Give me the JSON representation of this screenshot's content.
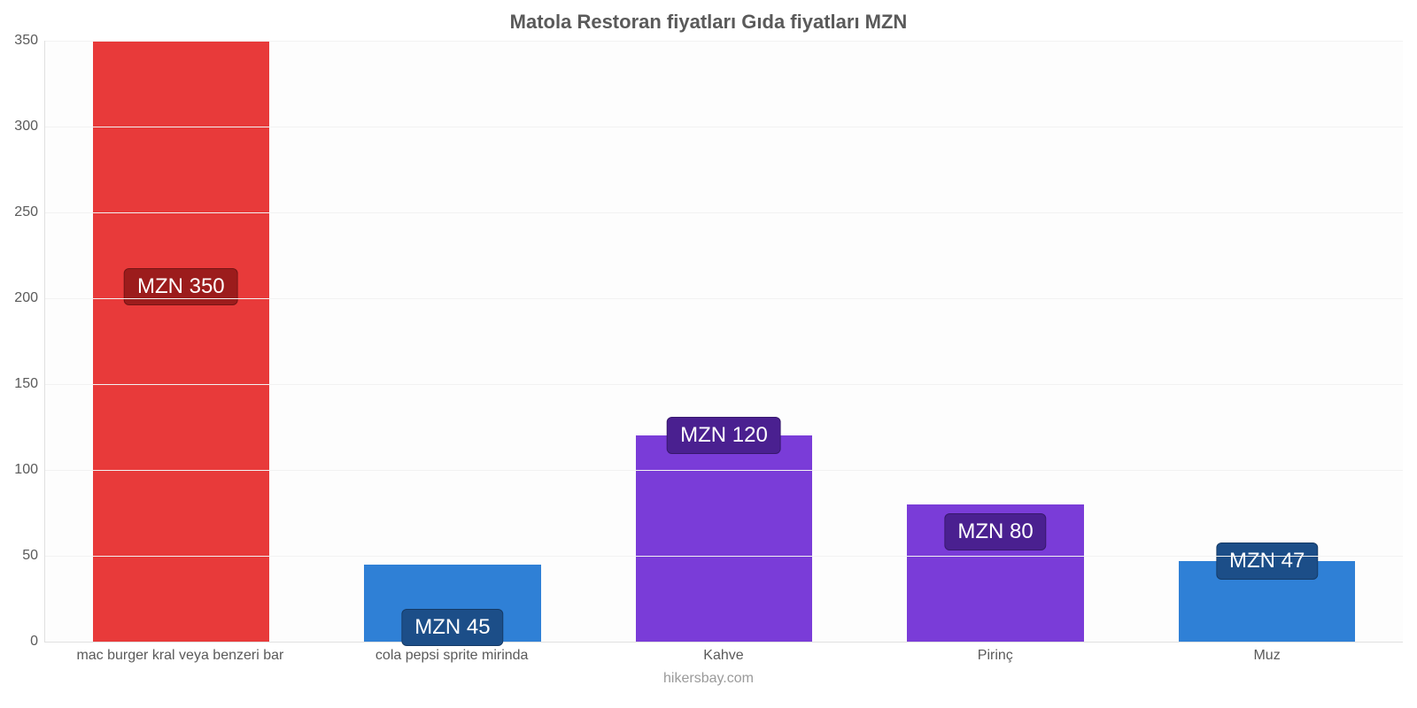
{
  "chart": {
    "type": "bar",
    "title": "Matola Restoran fiyatları Gıda fiyatları MZN",
    "title_fontsize": 22,
    "title_color": "#5a5a5a",
    "footer": "hikersbay.com",
    "footer_color": "#9a9a9a",
    "background_color": "#fdfdfd",
    "grid_color": "#f2f2f2",
    "axis_color": "#e0e0e0",
    "xlabel_fontsize": 16,
    "ylabel_fontsize": 16,
    "label_color": "#5a5a5a",
    "ylim": [
      0,
      350
    ],
    "ytick_step": 50,
    "bar_width": 0.65,
    "value_label_prefix": "MZN ",
    "value_label_fontsize": 24,
    "value_label_text_color": "#ffffff",
    "categories": [
      "mac burger kral veya benzeri bar",
      "cola pepsi sprite mirinda",
      "Kahve",
      "Pirinç",
      "Muz"
    ],
    "values": [
      350,
      45,
      120,
      80,
      47
    ],
    "bar_colors": [
      "#e83a3a",
      "#2f80d6",
      "#7a3cd8",
      "#7a3cd8",
      "#2f80d6"
    ],
    "badge_colors": [
      "#9c1c1c",
      "#1c4e88",
      "#4a2090",
      "#4a2090",
      "#1c4e88"
    ],
    "badge_y_ratio": [
      0.41,
      0.82,
      0.0,
      0.2,
      0.0
    ]
  }
}
